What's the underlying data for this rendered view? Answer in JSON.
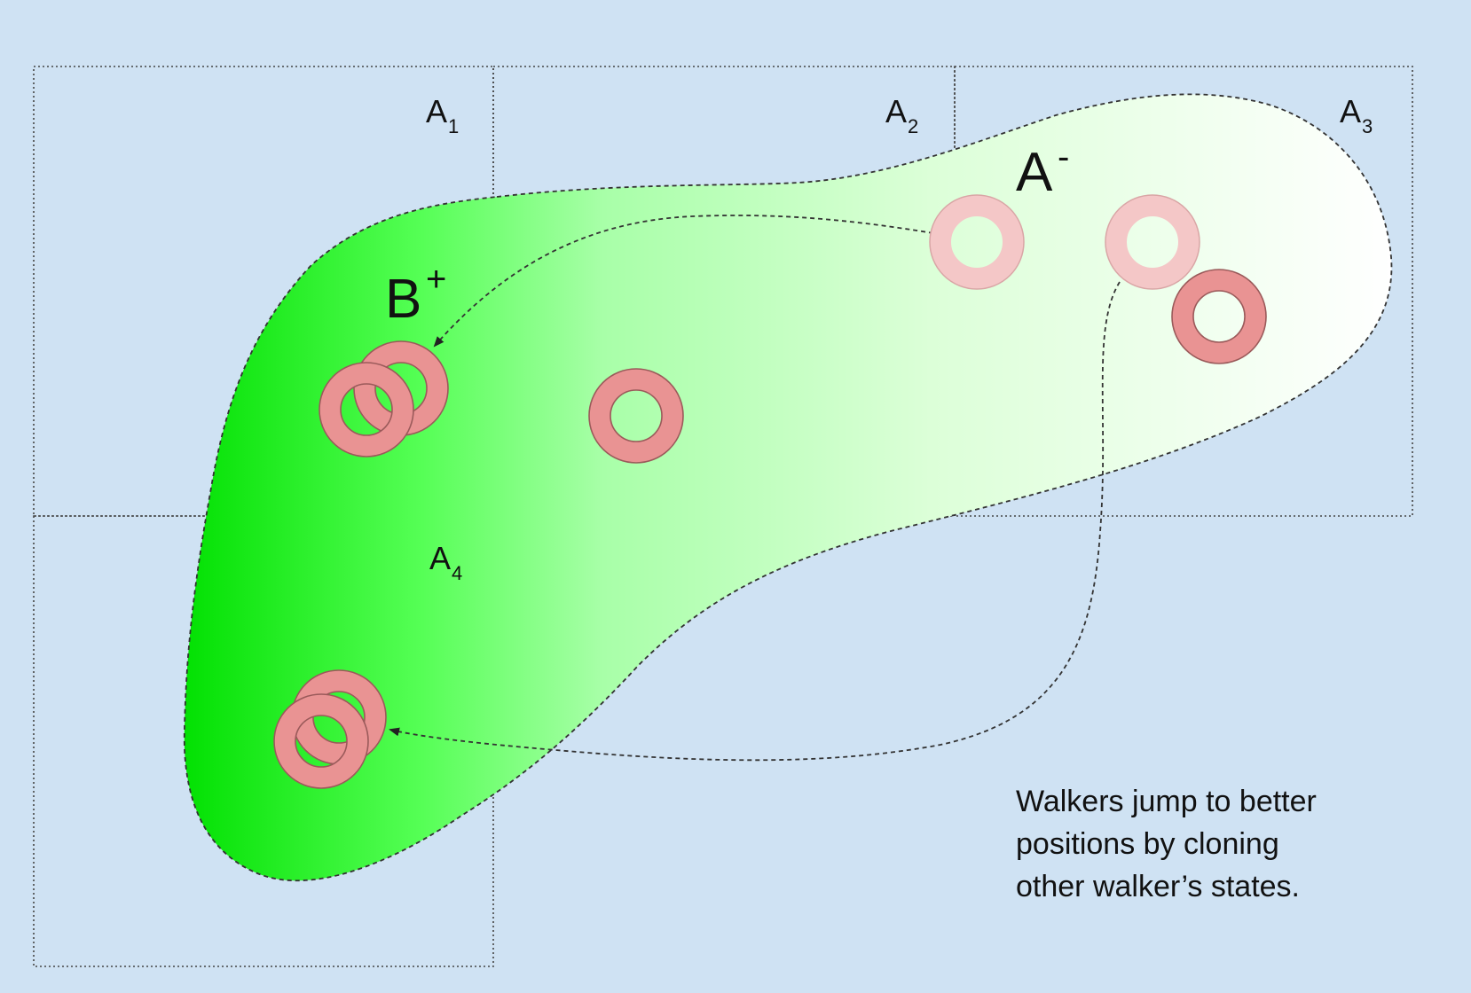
{
  "cells": [
    {
      "name": "A",
      "sub": "1"
    },
    {
      "name": "A",
      "sub": "2"
    },
    {
      "name": "A",
      "sub": "3"
    },
    {
      "name": "A",
      "sub": "4"
    }
  ],
  "region_labels": {
    "a_minus": {
      "base": "A",
      "sup": "-"
    },
    "b_plus": {
      "base": "B",
      "sup": "+"
    }
  },
  "caption": {
    "line1": "Walkers jump to better",
    "line2": "positions by cloning",
    "line3": "other walker’s states."
  },
  "colors": {
    "background": "#cfe2f3",
    "region_gradient_start": "#00e000",
    "region_gradient_end": "#ffffff",
    "walker": "#e99393",
    "walker_faded": "#f4c7c7",
    "walker_stroke": "#9a5a5a"
  }
}
